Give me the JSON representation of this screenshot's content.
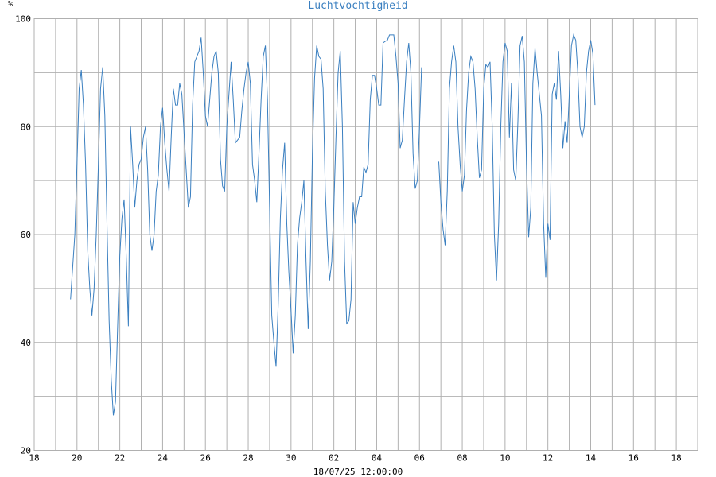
{
  "chart_data": {
    "type": "line",
    "title": "Luchtvochtigheid",
    "ylabel": "%",
    "xlabel": "18/07/25 12:00:00",
    "ylim": [
      20,
      100
    ],
    "yticks": [
      20,
      40,
      60,
      80,
      100
    ],
    "xlim": [
      0,
      31
    ],
    "x_unit": "days since 18 Jun",
    "x_tick_labels": [
      "18",
      "20",
      "22",
      "24",
      "26",
      "28",
      "30",
      "02",
      "04",
      "06",
      "08",
      "10",
      "12",
      "14",
      "16",
      "18"
    ],
    "x_tick_positions": [
      0,
      2,
      4,
      6,
      8,
      10,
      12,
      14,
      16,
      18,
      20,
      22,
      24,
      26,
      28,
      30
    ],
    "grid": true,
    "colors": {
      "series": "#3a7fc0",
      "grid": "#b0b0b0",
      "title": "#3a7fc0"
    },
    "series": [
      {
        "name": "Luchtvochtigheid",
        "segments": [
          [
            [
              1.7,
              48
            ],
            [
              1.9,
              60
            ],
            [
              2.0,
              73
            ],
            [
              2.1,
              87
            ],
            [
              2.2,
              90.5
            ],
            [
              2.3,
              84
            ],
            [
              2.4,
              73
            ],
            [
              2.5,
              57
            ],
            [
              2.6,
              50
            ],
            [
              2.7,
              45
            ],
            [
              2.8,
              50
            ],
            [
              2.9,
              60
            ],
            [
              3.0,
              73
            ],
            [
              3.1,
              87
            ],
            [
              3.2,
              91
            ],
            [
              3.3,
              82
            ],
            [
              3.4,
              62
            ],
            [
              3.5,
              44
            ],
            [
              3.6,
              33
            ],
            [
              3.7,
              26.5
            ],
            [
              3.8,
              29
            ],
            [
              3.9,
              43
            ],
            [
              4.0,
              56
            ],
            [
              4.1,
              63
            ],
            [
              4.2,
              66.5
            ],
            [
              4.3,
              56
            ],
            [
              4.4,
              43
            ],
            [
              4.5,
              80
            ],
            [
              4.6,
              73
            ],
            [
              4.7,
              65
            ],
            [
              4.8,
              70
            ],
            [
              4.9,
              73
            ],
            [
              5.0,
              74
            ],
            [
              5.1,
              78
            ],
            [
              5.2,
              80
            ],
            [
              5.3,
              72
            ],
            [
              5.4,
              60
            ],
            [
              5.5,
              57
            ],
            [
              5.6,
              60
            ],
            [
              5.7,
              68
            ],
            [
              5.8,
              71
            ],
            [
              5.9,
              80
            ],
            [
              6.0,
              83.5
            ],
            [
              6.1,
              77
            ],
            [
              6.2,
              72
            ],
            [
              6.3,
              68
            ],
            [
              6.4,
              78
            ],
            [
              6.5,
              87
            ],
            [
              6.6,
              84
            ],
            [
              6.7,
              84
            ],
            [
              6.8,
              88
            ],
            [
              6.9,
              86
            ],
            [
              7.0,
              79
            ],
            [
              7.1,
              72
            ],
            [
              7.2,
              65
            ],
            [
              7.3,
              67
            ],
            [
              7.4,
              84
            ],
            [
              7.5,
              92
            ],
            [
              7.6,
              93
            ],
            [
              7.7,
              94
            ],
            [
              7.8,
              96.5
            ],
            [
              7.9,
              90
            ],
            [
              8.0,
              82
            ],
            [
              8.1,
              80
            ],
            [
              8.2,
              85
            ],
            [
              8.3,
              90
            ],
            [
              8.4,
              93
            ],
            [
              8.5,
              94
            ],
            [
              8.6,
              90
            ],
            [
              8.7,
              74
            ],
            [
              8.8,
              69
            ],
            [
              8.9,
              68
            ],
            [
              9.0,
              80
            ],
            [
              9.1,
              86
            ],
            [
              9.2,
              92
            ],
            [
              9.3,
              85
            ],
            [
              9.4,
              77
            ],
            [
              9.5,
              77.5
            ],
            [
              9.6,
              78
            ],
            [
              9.7,
              83
            ],
            [
              9.8,
              87
            ],
            [
              9.9,
              90
            ],
            [
              10.0,
              92
            ],
            [
              10.1,
              88
            ],
            [
              10.2,
              73
            ],
            [
              10.3,
              70
            ],
            [
              10.4,
              66
            ],
            [
              10.5,
              75
            ],
            [
              10.6,
              85
            ],
            [
              10.7,
              93
            ],
            [
              10.8,
              95
            ],
            [
              10.9,
              85
            ],
            [
              11.0,
              65
            ],
            [
              11.1,
              45
            ],
            [
              11.2,
              40
            ],
            [
              11.3,
              35.5
            ],
            [
              11.4,
              47
            ],
            [
              11.5,
              63
            ],
            [
              11.6,
              72
            ],
            [
              11.7,
              77
            ],
            [
              11.8,
              62
            ],
            [
              11.9,
              53
            ],
            [
              12.0,
              46
            ],
            [
              12.1,
              38
            ],
            [
              12.2,
              45
            ],
            [
              12.3,
              58
            ],
            [
              12.4,
              63
            ],
            [
              12.5,
              66
            ],
            [
              12.6,
              70
            ],
            [
              12.7,
              55
            ],
            [
              12.8,
              42.5
            ],
            [
              12.9,
              55
            ],
            [
              13.0,
              75
            ],
            [
              13.1,
              89
            ],
            [
              13.2,
              95
            ],
            [
              13.3,
              93
            ],
            [
              13.4,
              92.5
            ],
            [
              13.5,
              87
            ],
            [
              13.6,
              68
            ],
            [
              13.7,
              58
            ],
            [
              13.8,
              51.5
            ],
            [
              13.9,
              55
            ],
            [
              14.0,
              65
            ],
            [
              14.1,
              78
            ],
            [
              14.2,
              90
            ],
            [
              14.3,
              94
            ],
            [
              14.4,
              80
            ],
            [
              14.5,
              55
            ],
            [
              14.6,
              43.5
            ],
            [
              14.7,
              44
            ],
            [
              14.8,
              48
            ],
            [
              14.9,
              66
            ],
            [
              15.0,
              62
            ],
            [
              15.1,
              65
            ],
            [
              15.2,
              67
            ],
            [
              15.3,
              67
            ],
            [
              15.4,
              72.5
            ],
            [
              15.5,
              71.5
            ],
            [
              15.6,
              73
            ],
            [
              15.7,
              85
            ],
            [
              15.8,
              89.5
            ],
            [
              15.9,
              89.5
            ],
            [
              16.0,
              87
            ],
            [
              16.1,
              84
            ],
            [
              16.2,
              84
            ],
            [
              16.3,
              95.5
            ],
            [
              16.4,
              95.8
            ],
            [
              16.5,
              96
            ],
            [
              16.6,
              97
            ],
            [
              16.7,
              97
            ],
            [
              16.8,
              97
            ],
            [
              16.9,
              93
            ],
            [
              17.0,
              88
            ],
            [
              17.1,
              76
            ],
            [
              17.2,
              77.5
            ],
            [
              17.3,
              85
            ],
            [
              17.4,
              92
            ],
            [
              17.5,
              95.5
            ],
            [
              17.6,
              90
            ],
            [
              17.7,
              75
            ],
            [
              17.8,
              68.5
            ],
            [
              17.9,
              70
            ],
            [
              18.0,
              80
            ],
            [
              18.1,
              91
            ]
          ],
          [
            [
              18.9,
              73.5
            ],
            [
              19.0,
              66
            ],
            [
              19.1,
              61
            ],
            [
              19.2,
              58
            ],
            [
              19.3,
              68
            ],
            [
              19.4,
              87
            ],
            [
              19.5,
              92
            ],
            [
              19.6,
              95
            ],
            [
              19.7,
              92
            ],
            [
              19.8,
              80
            ],
            [
              19.9,
              73
            ],
            [
              20.0,
              68
            ],
            [
              20.1,
              71
            ],
            [
              20.2,
              83
            ],
            [
              20.3,
              90
            ],
            [
              20.4,
              93
            ],
            [
              20.5,
              92
            ],
            [
              20.6,
              87
            ],
            [
              20.7,
              78
            ],
            [
              20.8,
              70.5
            ],
            [
              20.9,
              72
            ],
            [
              21.0,
              87
            ],
            [
              21.1,
              91.5
            ],
            [
              21.2,
              91
            ],
            [
              21.3,
              92
            ],
            [
              21.4,
              80
            ],
            [
              21.5,
              60
            ],
            [
              21.6,
              51.5
            ],
            [
              21.7,
              62
            ],
            [
              21.8,
              80
            ],
            [
              21.9,
              92
            ],
            [
              22.0,
              95.5
            ],
            [
              22.1,
              94
            ],
            [
              22.2,
              78
            ],
            [
              22.3,
              88
            ],
            [
              22.4,
              72
            ],
            [
              22.5,
              70
            ],
            [
              22.6,
              81
            ],
            [
              22.7,
              95
            ],
            [
              22.8,
              96.8
            ],
            [
              22.9,
              92
            ],
            [
              23.0,
              73
            ],
            [
              23.1,
              59.5
            ],
            [
              23.2,
              65
            ],
            [
              23.3,
              88
            ],
            [
              23.4,
              94.5
            ],
            [
              23.5,
              90
            ],
            [
              23.6,
              86
            ],
            [
              23.7,
              82
            ],
            [
              23.8,
              62
            ],
            [
              23.9,
              52
            ],
            [
              24.0,
              62
            ],
            [
              24.1,
              59
            ],
            [
              24.2,
              86
            ],
            [
              24.3,
              88
            ],
            [
              24.4,
              85
            ],
            [
              24.5,
              94
            ],
            [
              24.6,
              86
            ],
            [
              24.7,
              76
            ],
            [
              24.8,
              81
            ],
            [
              24.9,
              77
            ],
            [
              25.0,
              86
            ],
            [
              25.1,
              95
            ],
            [
              25.2,
              97
            ],
            [
              25.3,
              96
            ],
            [
              25.4,
              90
            ],
            [
              25.5,
              80
            ],
            [
              25.6,
              78
            ],
            [
              25.7,
              80
            ],
            [
              25.8,
              90
            ],
            [
              25.9,
              94
            ],
            [
              26.0,
              96
            ],
            [
              26.1,
              93.5
            ],
            [
              26.2,
              84
            ]
          ]
        ]
      }
    ]
  }
}
